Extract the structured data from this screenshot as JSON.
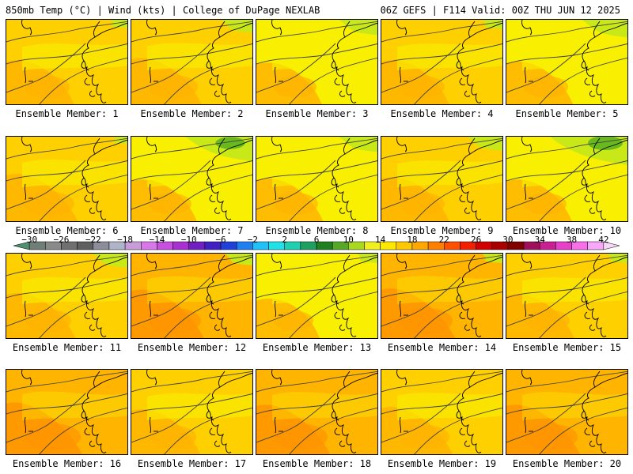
{
  "header": {
    "left": "850mb Temp (°C) | Wind (kts) | College of DuPage NEXLAB",
    "right": "06Z GEFS | F114 Valid: 00Z THU JUN 12 2025"
  },
  "legend": {
    "bins": [
      {
        "from": -32,
        "to": -30,
        "color": "#4f8f6f"
      },
      {
        "from": -30,
        "to": -28,
        "color": "#6f7f77"
      },
      {
        "from": -28,
        "to": -26,
        "color": "#8a8a8a"
      },
      {
        "from": -26,
        "to": -24,
        "color": "#707070"
      },
      {
        "from": -24,
        "to": -22,
        "color": "#5f5f5f"
      },
      {
        "from": -22,
        "to": -20,
        "color": "#8c8c9a"
      },
      {
        "from": -20,
        "to": -18,
        "color": "#b0b4c8"
      },
      {
        "from": -18,
        "to": -16,
        "color": "#c89cd8"
      },
      {
        "from": -16,
        "to": -14,
        "color": "#d878e8"
      },
      {
        "from": -14,
        "to": -12,
        "color": "#c850e0"
      },
      {
        "from": -12,
        "to": -10,
        "color": "#a830d0"
      },
      {
        "from": -10,
        "to": -8,
        "color": "#7020c0"
      },
      {
        "from": -8,
        "to": -6,
        "color": "#4020c0"
      },
      {
        "from": -6,
        "to": -4,
        "color": "#2040d8"
      },
      {
        "from": -4,
        "to": -2,
        "color": "#2080f0"
      },
      {
        "from": -2,
        "to": 0,
        "color": "#20c0f8"
      },
      {
        "from": 0,
        "to": 2,
        "color": "#20e0e8"
      },
      {
        "from": 2,
        "to": 4,
        "color": "#20d0b0"
      },
      {
        "from": 4,
        "to": 6,
        "color": "#20a060"
      },
      {
        "from": 6,
        "to": 8,
        "color": "#208020"
      },
      {
        "from": 8,
        "to": 10,
        "color": "#58a828"
      },
      {
        "from": 10,
        "to": 12,
        "color": "#a8d820"
      },
      {
        "from": 12,
        "to": 14,
        "color": "#f0f020"
      },
      {
        "from": 14,
        "to": 16,
        "color": "#ffe800"
      },
      {
        "from": 16,
        "to": 18,
        "color": "#ffc800"
      },
      {
        "from": 18,
        "to": 20,
        "color": "#ffa800"
      },
      {
        "from": 20,
        "to": 22,
        "color": "#ff8000"
      },
      {
        "from": 22,
        "to": 24,
        "color": "#ff5000"
      },
      {
        "from": 24,
        "to": 26,
        "color": "#f02000"
      },
      {
        "from": 26,
        "to": 28,
        "color": "#d00000"
      },
      {
        "from": 28,
        "to": 30,
        "color": "#a80000"
      },
      {
        "from": 30,
        "to": 32,
        "color": "#800000"
      },
      {
        "from": 32,
        "to": 34,
        "color": "#a0105a"
      },
      {
        "from": 34,
        "to": 36,
        "color": "#c82090"
      },
      {
        "from": 36,
        "to": 38,
        "color": "#e840c8"
      },
      {
        "from": 38,
        "to": 40,
        "color": "#f870e8"
      },
      {
        "from": 40,
        "to": 42,
        "color": "#f8a8f8"
      },
      {
        "from": 42,
        "to": 44,
        "color": "#f8d8f8"
      }
    ],
    "ticks": [
      "−30",
      "−26",
      "−22",
      "−18",
      "−14",
      "−10",
      "−6",
      "−2",
      "2",
      "6",
      "10",
      "14",
      "18",
      "22",
      "26",
      "30",
      "34",
      "38",
      "42"
    ],
    "tick_values": [
      -30,
      -26,
      -22,
      -18,
      -14,
      -10,
      -6,
      -2,
      2,
      6,
      10,
      14,
      18,
      22,
      26,
      30,
      34,
      38,
      42
    ]
  },
  "members": [
    {
      "label": "Ensemble Member: 1",
      "warmth": 0.55,
      "green": 0.15
    },
    {
      "label": "Ensemble Member: 2",
      "warmth": 0.65,
      "green": 0.35
    },
    {
      "label": "Ensemble Member: 3",
      "warmth": 0.45,
      "green": 0.45
    },
    {
      "label": "Ensemble Member: 4",
      "warmth": 0.55,
      "green": 0.2
    },
    {
      "label": "Ensemble Member: 5",
      "warmth": 0.5,
      "green": 0.55
    },
    {
      "label": "Ensemble Member: 6",
      "warmth": 0.7,
      "green": 0.1
    },
    {
      "label": "Ensemble Member: 7",
      "warmth": 0.45,
      "green": 0.85
    },
    {
      "label": "Ensemble Member: 8",
      "warmth": 0.5,
      "green": 0.45
    },
    {
      "label": "Ensemble Member: 9",
      "warmth": 0.55,
      "green": 0.4
    },
    {
      "label": "Ensemble Member: 10",
      "warmth": 0.45,
      "green": 1.0
    },
    {
      "label": "Ensemble Member: 11",
      "warmth": 0.6,
      "green": 0.4
    },
    {
      "label": "Ensemble Member: 12",
      "warmth": 0.75,
      "green": 0.3
    },
    {
      "label": "Ensemble Member: 13",
      "warmth": 0.35,
      "green": 0.2
    },
    {
      "label": "Ensemble Member: 14",
      "warmth": 0.8,
      "green": 0.2
    },
    {
      "label": "Ensemble Member: 15",
      "warmth": 0.55,
      "green": 0.2
    },
    {
      "label": "Ensemble Member: 16",
      "warmth": 0.9,
      "green": 0.0
    },
    {
      "label": "Ensemble Member: 17",
      "warmth": 0.6,
      "green": 0.0
    },
    {
      "label": "Ensemble Member: 18",
      "warmth": 0.8,
      "green": 0.0
    },
    {
      "label": "Ensemble Member: 19",
      "warmth": 0.7,
      "green": 0.0
    },
    {
      "label": "Ensemble Member: 20",
      "warmth": 0.8,
      "green": 0.0
    }
  ],
  "colors": {
    "yellow": "#f8f000",
    "light_orange": "#ffd000",
    "orange": "#ffb400",
    "deep_orange": "#ff9400",
    "green_light": "#c8e818",
    "green_dark": "#58b020",
    "contour": "#404040",
    "coast": "#000000"
  }
}
